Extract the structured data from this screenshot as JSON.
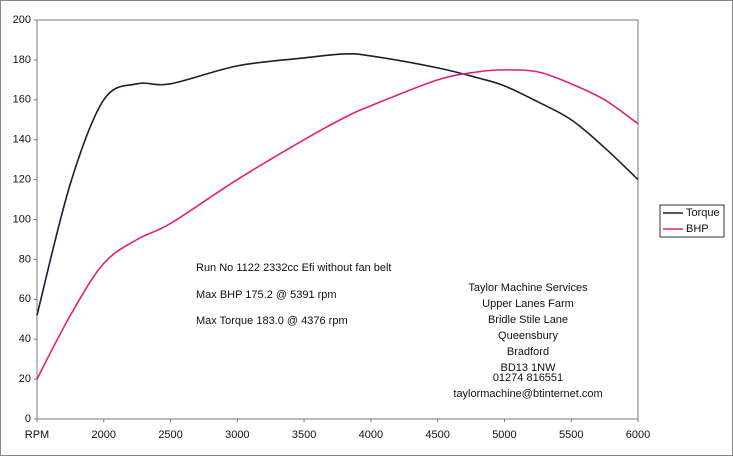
{
  "chart_data": {
    "type": "line",
    "x": [
      1500,
      1750,
      2000,
      2250,
      2500,
      3000,
      3500,
      3800,
      4000,
      4500,
      4800,
      5000,
      5250,
      5500,
      5750,
      6000
    ],
    "series": [
      {
        "name": "Torque",
        "color": "#1c1c34",
        "values": [
          52,
          118,
          160,
          168,
          168,
          177,
          181,
          183,
          182,
          176,
          171,
          167,
          159,
          150,
          136,
          120
        ]
      },
      {
        "name": "BHP",
        "color": "#e0207a",
        "values": [
          20,
          52,
          78,
          90,
          98,
          120,
          140,
          151,
          157,
          170,
          174,
          175,
          174,
          168,
          160,
          148
        ]
      }
    ],
    "xlim": [
      1500,
      6000
    ],
    "xticks": [
      {
        "value": 1500,
        "label": "RPM"
      },
      2000,
      2500,
      3000,
      3500,
      4000,
      4500,
      5000,
      5500,
      6000
    ],
    "ylim": [
      0,
      200
    ],
    "yticks": [
      0,
      20,
      40,
      60,
      80,
      100,
      120,
      140,
      160,
      180,
      200
    ],
    "grid": false,
    "legend": "right",
    "run_info": [
      "Run No 1122 2332cc Efi without fan belt",
      "Max BHP 175.2 @ 5391 rpm",
      "Max Torque 183.0 @ 4376 rpm"
    ],
    "contact": [
      "Taylor Machine Services",
      "Upper Lanes Farm",
      "Bridle Stile Lane",
      "Queensbury",
      "Bradford",
      "BD13 1NW",
      "01274 816551",
      "taylormachine@btinternet.com"
    ]
  }
}
